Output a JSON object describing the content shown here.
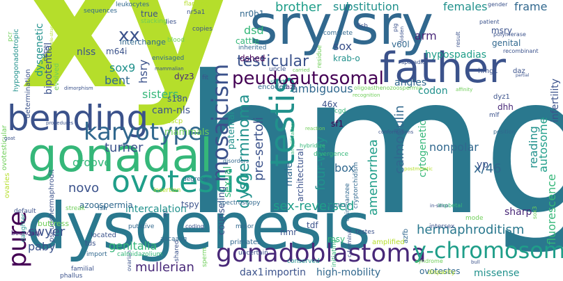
{
  "palette": {
    "lime": "#b5de2b",
    "teal": "#21918c",
    "dark_teal": "#2a788e",
    "blue": "#31688e",
    "indigo": "#3b528b",
    "purple": "#482878",
    "dark_purple": "#440154",
    "green": "#35b779",
    "light_green": "#6ece58",
    "yellow": "#fde725",
    "sea": "#1f9e89"
  },
  "words": [
    {
      "text": "xy",
      "color": "#b5de2b"
    },
    {
      "text": "hmg",
      "color": "#2a788e"
    },
    {
      "text": "dysgenesis",
      "color": "#2a788e"
    },
    {
      "text": "sry/sry",
      "color": "#31688e"
    },
    {
      "text": "father",
      "color": "#3b528b"
    },
    {
      "text": "gonadal",
      "color": "#35b779"
    },
    {
      "text": "bending",
      "color": "#3b528b"
    },
    {
      "text": "karyotype",
      "color": "#31688e"
    },
    {
      "text": "pure",
      "color": "#440154"
    },
    {
      "text": "testis",
      "color": "#21918c"
    },
    {
      "text": "ovotestis",
      "color": "#1f9e89"
    },
    {
      "text": "mosaicism",
      "color": "#3b528b"
    },
    {
      "text": "gonadoblastoma",
      "color": "#482878"
    },
    {
      "text": "y-chromosome",
      "color": "#1f9e89"
    },
    {
      "text": "peudoautosomal",
      "color": "#440154"
    },
    {
      "text": "testicular",
      "color": "#3b528b"
    },
    {
      "text": "xx",
      "color": "#3b528b"
    },
    {
      "text": "substitution",
      "color": "#21918c"
    },
    {
      "text": "brother",
      "color": "#1f9e89"
    },
    {
      "text": "females",
      "color": "#21918c"
    },
    {
      "text": "frame",
      "color": "#31688e"
    },
    {
      "text": "sox9",
      "color": "#21918c"
    },
    {
      "text": "turner",
      "color": "#3b528b"
    },
    {
      "text": "dysgerminoma",
      "color": "#21918c"
    },
    {
      "text": "sex-reversed",
      "color": "#1f9e89"
    },
    {
      "text": "calmodulin",
      "color": "#31688e"
    },
    {
      "text": "genitalia",
      "color": "#35b779"
    },
    {
      "text": "hermaphroditism",
      "color": "#2a788e"
    },
    {
      "text": "mullerian",
      "color": "#482878"
    },
    {
      "text": "swyer",
      "color": "#3b528b"
    },
    {
      "text": "novo",
      "color": "#3b528b"
    },
    {
      "text": "paby",
      "color": "#3b528b"
    },
    {
      "text": "box",
      "color": "#31688e"
    },
    {
      "text": "high-mobility",
      "color": "#31688e"
    },
    {
      "text": "importin",
      "color": "#3b528b"
    },
    {
      "text": "dax1",
      "color": "#3b528b"
    },
    {
      "text": "missense",
      "color": "#21918c"
    },
    {
      "text": "ovotestes",
      "color": "#31688e"
    },
    {
      "text": "x/46",
      "color": "#31688e"
    },
    {
      "text": "sharp",
      "color": "#482878"
    },
    {
      "text": "nonpolar",
      "color": "#31688e"
    },
    {
      "text": "amenorrhea",
      "color": "#1f9e89"
    },
    {
      "text": "four-way",
      "color": "#21918c"
    },
    {
      "text": "pre-sertoli",
      "color": "#3b528b"
    },
    {
      "text": "ambiguous",
      "color": "#31688e"
    },
    {
      "text": "sisters",
      "color": "#35b779"
    },
    {
      "text": "groove",
      "color": "#35b779"
    },
    {
      "text": "intercalation",
      "color": "#21918c"
    },
    {
      "text": "azoospermia",
      "color": "#31688e"
    },
    {
      "text": "tspy",
      "color": "#3b528b"
    },
    {
      "text": "bent",
      "color": "#31688e"
    },
    {
      "text": "nlss",
      "color": "#3b528b"
    },
    {
      "text": "m64i",
      "color": "#3b528b"
    },
    {
      "text": "dysgenetic",
      "color": "#21918c"
    },
    {
      "text": "bipotential",
      "color": "#3b528b"
    },
    {
      "text": "hypospadias",
      "color": "#1f9e89"
    },
    {
      "text": "angles",
      "color": "#31688e"
    },
    {
      "text": "sox",
      "color": "#3b528b"
    },
    {
      "text": "arm",
      "color": "#482878"
    },
    {
      "text": "msry",
      "color": "#3b528b"
    },
    {
      "text": "yp",
      "color": "#3b528b"
    },
    {
      "text": "reading",
      "color": "#21918c"
    },
    {
      "text": "autosome",
      "color": "#1f9e89"
    },
    {
      "text": "infertility",
      "color": "#3b528b"
    },
    {
      "text": "codon",
      "color": "#21918c"
    },
    {
      "text": "dhh",
      "color": "#482878"
    },
    {
      "text": "dyz1",
      "color": "#3b528b"
    },
    {
      "text": "sf1",
      "color": "#440154"
    },
    {
      "text": "46x",
      "color": "#3b528b"
    },
    {
      "text": "male",
      "color": "#31688e"
    },
    {
      "text": "dsd",
      "color": "#35b779"
    },
    {
      "text": "sexual",
      "color": "#35b779"
    },
    {
      "text": "paternal",
      "color": "#21918c"
    },
    {
      "text": "counseling",
      "color": "#3b528b"
    },
    {
      "text": "architectural",
      "color": "#3b528b"
    },
    {
      "text": "cytogenetic",
      "color": "#35b779"
    },
    {
      "text": "fluorescence",
      "color": "#35b779"
    },
    {
      "text": "mammals",
      "color": "#6ece58"
    },
    {
      "text": "sscp",
      "color": "#b5de2b"
    },
    {
      "text": "cam-nls",
      "color": "#3b528b"
    },
    {
      "text": "s18n",
      "color": "#3b528b"
    },
    {
      "text": "dyz3",
      "color": "#482878"
    },
    {
      "text": "hsry",
      "color": "#3b528b"
    },
    {
      "text": "true",
      "color": "#3b528b"
    },
    {
      "text": "interchange",
      "color": "#31688e"
    },
    {
      "text": "nr0b1",
      "color": "#31688e"
    },
    {
      "text": "cattle",
      "color": "#35b779"
    },
    {
      "text": "dshed",
      "color": "#440154"
    },
    {
      "text": "krab-o",
      "color": "#21918c"
    },
    {
      "text": "v60l",
      "color": "#31688e"
    },
    {
      "text": "genital",
      "color": "#31688e"
    },
    {
      "text": "polymerase",
      "color": "#3b528b"
    },
    {
      "text": "hmg1",
      "color": "#3b528b"
    },
    {
      "text": "daz",
      "color": "#3b528b"
    },
    {
      "text": "oligoasthenozoospermia",
      "color": "#6ece58"
    },
    {
      "text": "encoded",
      "color": "#31688e"
    },
    {
      "text": "azf",
      "color": "#482878"
    },
    {
      "text": "inherited",
      "color": "#31688e"
    },
    {
      "text": "uncle",
      "color": "#3b528b"
    },
    {
      "text": "short",
      "color": "#21918c"
    },
    {
      "text": "sporadic",
      "color": "#3b528b"
    },
    {
      "text": "nmr",
      "color": "#3b528b"
    },
    {
      "text": "msy",
      "color": "#35b779"
    },
    {
      "text": "tdf",
      "color": "#3b528b"
    },
    {
      "text": "cgd",
      "color": "#35b779"
    },
    {
      "text": "primates",
      "color": "#31688e"
    },
    {
      "text": "tds",
      "color": "#3b528b"
    },
    {
      "text": "located",
      "color": "#3b528b"
    },
    {
      "text": "coding",
      "color": "#3b528b"
    },
    {
      "text": "mode",
      "color": "#6ece58"
    },
    {
      "text": "daughter",
      "color": "#21918c"
    },
    {
      "text": "amplified",
      "color": "#b5de2b"
    },
    {
      "text": "testes",
      "color": "#3b528b"
    },
    {
      "text": "conserved",
      "color": "#21918c"
    },
    {
      "text": "map3k1",
      "color": "#31688e"
    },
    {
      "text": "azfb",
      "color": "#31688e"
    },
    {
      "text": "intersex",
      "color": "#3b528b"
    },
    {
      "text": "position",
      "color": "#31688e"
    },
    {
      "text": "sox3",
      "color": "#6ece58"
    },
    {
      "text": "mlf",
      "color": "#3b528b"
    },
    {
      "text": "impbetal",
      "color": "#35b779"
    },
    {
      "text": "import",
      "color": "#31688e"
    },
    {
      "text": "calmidazolium",
      "color": "#35b779"
    },
    {
      "text": "aacaaag",
      "color": "#31688e"
    },
    {
      "text": "familial",
      "color": "#3b528b"
    },
    {
      "text": "ovarian",
      "color": "#3b528b"
    },
    {
      "text": "phallus",
      "color": "#3b528b"
    },
    {
      "text": "boundary",
      "color": "#482878"
    },
    {
      "text": "default",
      "color": "#3b528b"
    },
    {
      "text": "ovaries",
      "color": "#b5de2b"
    },
    {
      "text": "buttress",
      "color": "#6ece58"
    },
    {
      "text": "putative",
      "color": "#31688e"
    },
    {
      "text": "streak",
      "color": "#6ece58"
    },
    {
      "text": "fsh",
      "color": "#31688e"
    },
    {
      "text": "insertion",
      "color": "#b5de2b"
    },
    {
      "text": "degrees",
      "color": "#31688e"
    },
    {
      "text": "ovotesticular",
      "color": "#6ece58"
    },
    {
      "text": "determination",
      "color": "#3b528b"
    },
    {
      "text": "hypogonadotropic",
      "color": "#21918c"
    },
    {
      "text": "evolved",
      "color": "#6ece58"
    },
    {
      "text": "pcr",
      "color": "#6ece58"
    },
    {
      "text": "sequences",
      "color": "#31688e"
    },
    {
      "text": "leukocytes",
      "color": "#31688e"
    },
    {
      "text": "flanking",
      "color": "#b5de2b"
    },
    {
      "text": "stacking",
      "color": "#6ece58"
    },
    {
      "text": "nr5a1",
      "color": "#3b528b"
    },
    {
      "text": "lies",
      "color": "#3b528b"
    },
    {
      "text": "copies",
      "color": "#3b528b"
    },
    {
      "text": "blood",
      "color": "#6ece58"
    },
    {
      "text": "envisaged",
      "color": "#31688e"
    },
    {
      "text": "result",
      "color": "#3b528b"
    },
    {
      "text": "fit",
      "color": "#3b528b"
    },
    {
      "text": "gender",
      "color": "#3b528b"
    },
    {
      "text": "recombinant",
      "color": "#3b528b"
    },
    {
      "text": "patient",
      "color": "#3b528b"
    },
    {
      "text": "fish",
      "color": "#3b528b"
    },
    {
      "text": "pig",
      "color": "#3b528b"
    },
    {
      "text": "hidden",
      "color": "#3b528b"
    },
    {
      "text": "complete",
      "color": "#31688e"
    },
    {
      "text": "residue",
      "color": "#6ece58"
    },
    {
      "text": "divergence",
      "color": "#35b779"
    },
    {
      "text": "chimpanzee",
      "color": "#31688e"
    },
    {
      "text": "cryptorchidism",
      "color": "#31688e"
    },
    {
      "text": "initiating",
      "color": "#35b779"
    },
    {
      "text": "hybridize",
      "color": "#35b779"
    },
    {
      "text": "amplification",
      "color": "#35b779"
    },
    {
      "text": "spectroscopy",
      "color": "#31688e"
    },
    {
      "text": "minor",
      "color": "#31688e"
    },
    {
      "text": "sperm",
      "color": "#6ece58"
    },
    {
      "text": "shared",
      "color": "#3b528b"
    },
    {
      "text": "syndrome",
      "color": "#6ece58"
    },
    {
      "text": "disparity",
      "color": "#b5de2b"
    },
    {
      "text": "bull",
      "color": "#3b528b"
    },
    {
      "text": "pseudohermaphrodit",
      "color": "#3b528b"
    },
    {
      "text": "ridge",
      "color": "#3b528b"
    },
    {
      "text": "single-strand",
      "color": "#b5de2b"
    },
    {
      "text": "procedures",
      "color": "#3b528b"
    },
    {
      "text": "dimorphism",
      "color": "#3b528b"
    },
    {
      "text": "mammalian",
      "color": "#3b528b"
    },
    {
      "text": "goat",
      "color": "#3b528b"
    },
    {
      "text": "reaction",
      "color": "#6ece58"
    },
    {
      "text": "affinity",
      "color": "#6ece58"
    },
    {
      "text": "carried",
      "color": "#6ece58"
    },
    {
      "text": "disorders",
      "color": "#31688e"
    },
    {
      "text": "uncertain",
      "color": "#3b528b"
    },
    {
      "text": "xg",
      "color": "#3b528b"
    },
    {
      "text": "c-terminal",
      "color": "#3b528b"
    },
    {
      "text": "partial",
      "color": "#3b528b"
    },
    {
      "text": "recognition",
      "color": "#6ece58"
    },
    {
      "text": "conformations",
      "color": "#3b528b"
    },
    {
      "text": "postmeiotic",
      "color": "#b5de2b"
    },
    {
      "text": "in-silico",
      "color": "#3b528b"
    }
  ]
}
